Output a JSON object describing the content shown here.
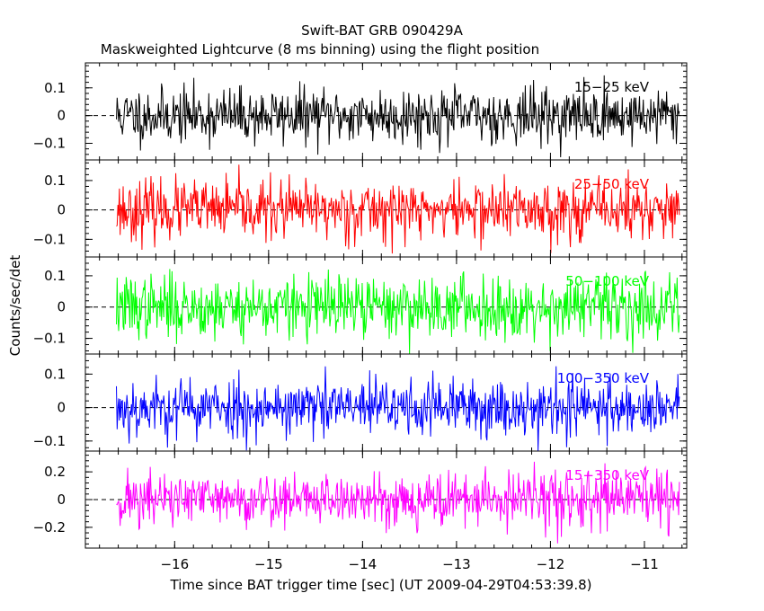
{
  "chart_data": {
    "type": "line",
    "title": "Swift-BAT GRB 090429A",
    "subtitle": "Maskweighted Lightcurve (8 ms binning) using the flight position",
    "xlabel": "Time since BAT trigger time [sec] (UT 2009-04-29T04:53:39.8)",
    "ylabel": "Counts/sec/det",
    "xlim": [
      -16.95,
      -10.55
    ],
    "x_range": [
      -16.62,
      -10.62
    ],
    "bin_width": 0.008,
    "x_ticks": [
      -16,
      -15,
      -14,
      -13,
      -12,
      -11
    ],
    "x_tick_labels": [
      "−16",
      "−15",
      "−14",
      "−13",
      "−12",
      "−11"
    ],
    "grid": false,
    "panels": [
      {
        "name": "15-25 keV",
        "label": "15−25 keV",
        "color": "#000000",
        "ylim": [
          -0.16,
          0.19
        ],
        "yticks": [
          -0.1,
          0,
          0.1
        ],
        "ytick_labels": [
          "−0.1",
          "0",
          "0.1"
        ],
        "noise_sigma": 0.05,
        "noise_clip": 0.155,
        "seed": 11
      },
      {
        "name": "25-50 keV",
        "label": "25−50 keV",
        "color": "#ff0000",
        "ylim": [
          -0.16,
          0.17
        ],
        "yticks": [
          -0.1,
          0,
          0.1
        ],
        "ytick_labels": [
          "−0.1",
          "0",
          "0.1"
        ],
        "noise_sigma": 0.05,
        "noise_clip": 0.155,
        "seed": 23
      },
      {
        "name": "50-100 keV",
        "label": "50−100 keV",
        "color": "#00ff00",
        "ylim": [
          -0.15,
          0.16
        ],
        "yticks": [
          -0.1,
          0,
          0.1
        ],
        "ytick_labels": [
          "−0.1",
          "0",
          "0.1"
        ],
        "noise_sigma": 0.05,
        "noise_clip": 0.15,
        "seed": 37
      },
      {
        "name": "100-350 keV",
        "label": "100−350 keV",
        "color": "#0000ff",
        "ylim": [
          -0.13,
          0.16
        ],
        "yticks": [
          -0.1,
          0,
          0.1
        ],
        "ytick_labels": [
          "−0.1",
          "0",
          "0.1"
        ],
        "noise_sigma": 0.045,
        "noise_clip": 0.13,
        "seed": 53
      },
      {
        "name": "15-350 keV",
        "label": "15−350 keV",
        "color": "#ff00ff",
        "ylim": [
          -0.35,
          0.35
        ],
        "yticks": [
          -0.2,
          0,
          0.2
        ],
        "ytick_labels": [
          "−0.2",
          "0",
          "0.2"
        ],
        "noise_sigma": 0.1,
        "noise_clip": 0.34,
        "seed": 71
      }
    ]
  }
}
